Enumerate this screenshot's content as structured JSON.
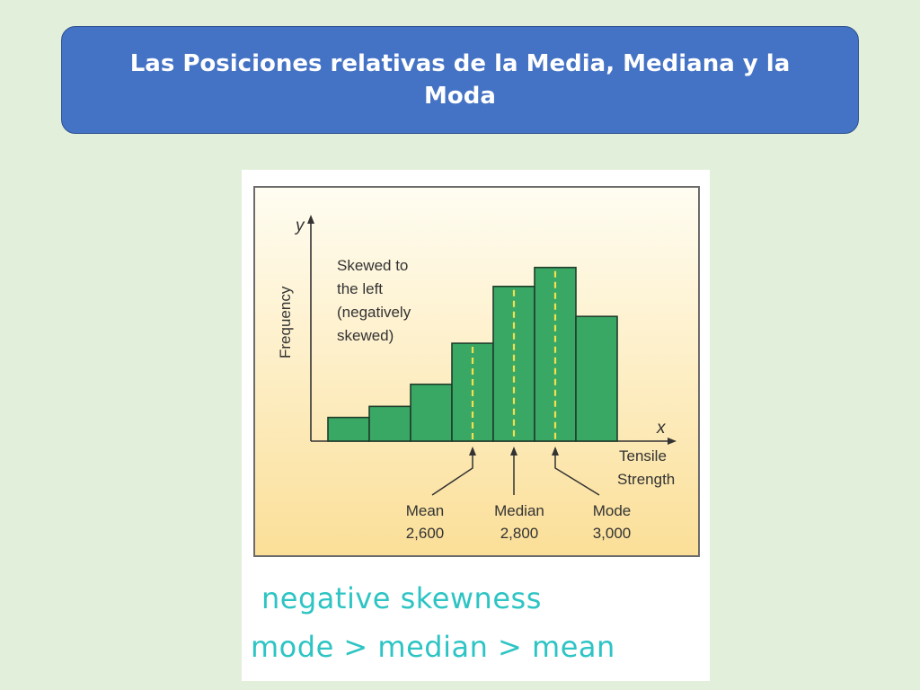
{
  "slide": {
    "title": "Las Posiciones relativas de la Media, Mediana y la Moda"
  },
  "chart_data": {
    "type": "bar",
    "title": "",
    "xlabel": "x",
    "ylabel": "y",
    "y_axis_title": "Frequency",
    "x_axis_title_line1": "Tensile",
    "x_axis_title_line2": "Strength",
    "annotation_lines": [
      "Skewed to",
      "the left",
      "(negatively",
      "skewed)"
    ],
    "values": [
      1.5,
      2.2,
      3.6,
      6.2,
      9.8,
      11.0,
      7.9
    ],
    "ylim": [
      0,
      14
    ],
    "grid": false,
    "colors": {
      "bar": "#3aa865",
      "bar_stroke": "#1f3d2a",
      "panel_top": "#fffdf2",
      "panel_bottom": "#fbdf98",
      "marker": "#f4e04d"
    },
    "markers": [
      {
        "name": "Mean",
        "value": "2,600",
        "bar_index": 3
      },
      {
        "name": "Median",
        "value": "2,800",
        "bar_index": 4
      },
      {
        "name": "Mode",
        "value": "3,000",
        "bar_index": 5
      }
    ]
  },
  "captions": {
    "line1": "negative skewness",
    "line2": "mode > median > mean"
  }
}
